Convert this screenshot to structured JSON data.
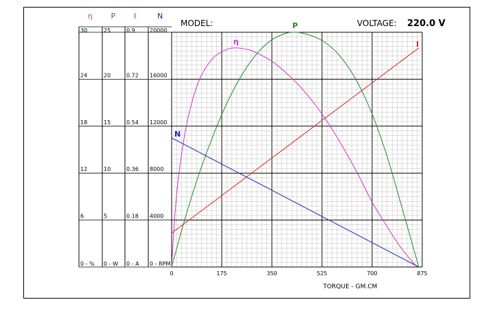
{
  "header": {
    "model_label": "MODEL:",
    "voltage_label": "VOLTAGE:",
    "voltage_value": "220.0 V"
  },
  "colors": {
    "efficiency": "#cc33cc",
    "power": "#228822",
    "current": "#dd2222",
    "speed": "#2222aa",
    "major_grid": "#000000",
    "minor_grid": "#bbbbbb"
  },
  "scales": [
    {
      "symbol": "η",
      "color": "#cc33cc",
      "ticks": [
        "30",
        "24",
        "18",
        "12",
        "6",
        "0 - %"
      ]
    },
    {
      "symbol": "P",
      "color": "#228822",
      "ticks": [
        "25",
        "20",
        "15",
        "10",
        "5",
        "0 - W"
      ]
    },
    {
      "symbol": "I",
      "color": "#dd2222",
      "ticks": [
        "0.9",
        "0.72",
        "0.54",
        "0.36",
        "0.18",
        "0 - A"
      ]
    },
    {
      "symbol": "N",
      "color": "#2222aa",
      "ticks": [
        "20000",
        "16000",
        "12000",
        "8000",
        "4000",
        "0 - RPM"
      ]
    }
  ],
  "chart_data": {
    "type": "line",
    "xlabel": "TORQUE - GM.CM",
    "x_ticks": [
      "0",
      "175",
      "350",
      "525",
      "700",
      "875"
    ],
    "xlim": [
      0,
      875
    ],
    "grid": true,
    "series": [
      {
        "name": "η",
        "axis": "efficiency (%)",
        "ylim": [
          0,
          30
        ],
        "color": "#cc33cc",
        "x": [
          0,
          10,
          25,
          50,
          75,
          100,
          125,
          150,
          175,
          200,
          225,
          250,
          275,
          300,
          350,
          400,
          450,
          500,
          550,
          600,
          650,
          700,
          750,
          800,
          850,
          863
        ],
        "y": [
          0,
          6.0,
          11.8,
          17.8,
          21.6,
          24.2,
          25.8,
          26.9,
          27.5,
          27.9,
          28.0,
          27.9,
          27.7,
          27.3,
          26.3,
          24.8,
          23.0,
          20.8,
          18.2,
          15.2,
          11.9,
          8.3,
          5.3,
          2.5,
          0.3,
          0
        ]
      },
      {
        "name": "P",
        "axis": "power (W)",
        "ylim": [
          0,
          25
        ],
        "color": "#228822",
        "x": [
          0,
          50,
          100,
          150,
          200,
          250,
          300,
          350,
          400,
          431,
          450,
          500,
          550,
          600,
          650,
          700,
          750,
          800,
          863
        ],
        "y": [
          0,
          5.5,
          10.3,
          14.4,
          17.9,
          20.7,
          22.8,
          24.2,
          24.9,
          25.0,
          24.95,
          24.5,
          23.6,
          22.0,
          19.6,
          16.3,
          12.0,
          6.8,
          0
        ]
      },
      {
        "name": "I",
        "axis": "current (A)",
        "ylim": [
          0,
          0.9
        ],
        "color": "#dd2222",
        "x": [
          0,
          863
        ],
        "y": [
          0.13,
          0.84
        ]
      },
      {
        "name": "N",
        "axis": "speed (RPM)",
        "ylim": [
          0,
          20000
        ],
        "color": "#2222aa",
        "x": [
          0,
          863
        ],
        "y": [
          11000,
          0
        ]
      }
    ]
  }
}
